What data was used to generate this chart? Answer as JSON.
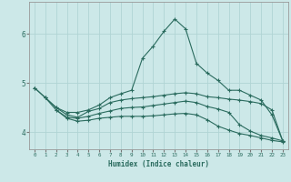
{
  "xlabel": "Humidex (Indice chaleur)",
  "background_color": "#cce8e8",
  "grid_color": "#b0d4d4",
  "line_color": "#2a6b5e",
  "x_ticks": [
    0,
    1,
    2,
    3,
    4,
    5,
    6,
    7,
    8,
    9,
    10,
    11,
    12,
    13,
    14,
    15,
    16,
    17,
    18,
    19,
    20,
    21,
    22,
    23
  ],
  "y_ticks": [
    4,
    5,
    6
  ],
  "xlim": [
    -0.5,
    23.5
  ],
  "ylim": [
    3.65,
    6.65
  ],
  "line1_x": [
    0,
    1,
    2,
    3,
    4,
    5,
    6,
    7,
    8,
    9,
    10,
    11,
    12,
    13,
    14,
    15,
    16,
    17,
    18,
    19,
    20,
    21,
    22,
    23
  ],
  "line1_y": [
    4.9,
    4.7,
    4.5,
    4.4,
    4.4,
    4.45,
    4.55,
    4.7,
    4.78,
    4.85,
    5.5,
    5.75,
    6.05,
    6.3,
    6.1,
    5.4,
    5.2,
    5.05,
    4.85,
    4.85,
    4.75,
    4.65,
    4.35,
    3.82
  ],
  "line2_x": [
    0,
    1,
    2,
    3,
    4,
    5,
    6,
    7,
    8,
    9,
    10,
    11,
    12,
    13,
    14,
    15,
    16,
    17,
    18,
    19,
    20,
    21,
    22,
    23
  ],
  "line2_y": [
    4.9,
    4.7,
    4.5,
    4.35,
    4.3,
    4.42,
    4.48,
    4.6,
    4.65,
    4.68,
    4.7,
    4.72,
    4.75,
    4.78,
    4.8,
    4.78,
    4.72,
    4.7,
    4.67,
    4.65,
    4.62,
    4.58,
    4.45,
    3.82
  ],
  "line3_x": [
    1,
    2,
    3,
    4,
    5,
    6,
    7,
    8,
    9,
    10,
    11,
    12,
    13,
    14,
    15,
    16,
    17,
    18,
    19,
    20,
    21,
    22,
    23
  ],
  "line3_y": [
    4.7,
    4.45,
    4.3,
    4.28,
    4.32,
    4.38,
    4.43,
    4.48,
    4.5,
    4.51,
    4.54,
    4.57,
    4.6,
    4.63,
    4.6,
    4.52,
    4.47,
    4.4,
    4.15,
    4.02,
    3.93,
    3.88,
    3.82
  ],
  "line4_x": [
    2,
    3,
    4,
    5,
    6,
    7,
    8,
    9,
    10,
    11,
    12,
    13,
    14,
    15,
    16,
    17,
    18,
    19,
    20,
    21,
    22,
    23
  ],
  "line4_y": [
    4.45,
    4.28,
    4.22,
    4.24,
    4.28,
    4.3,
    4.32,
    4.32,
    4.32,
    4.33,
    4.35,
    4.37,
    4.38,
    4.35,
    4.25,
    4.12,
    4.04,
    3.97,
    3.93,
    3.88,
    3.83,
    3.8
  ]
}
